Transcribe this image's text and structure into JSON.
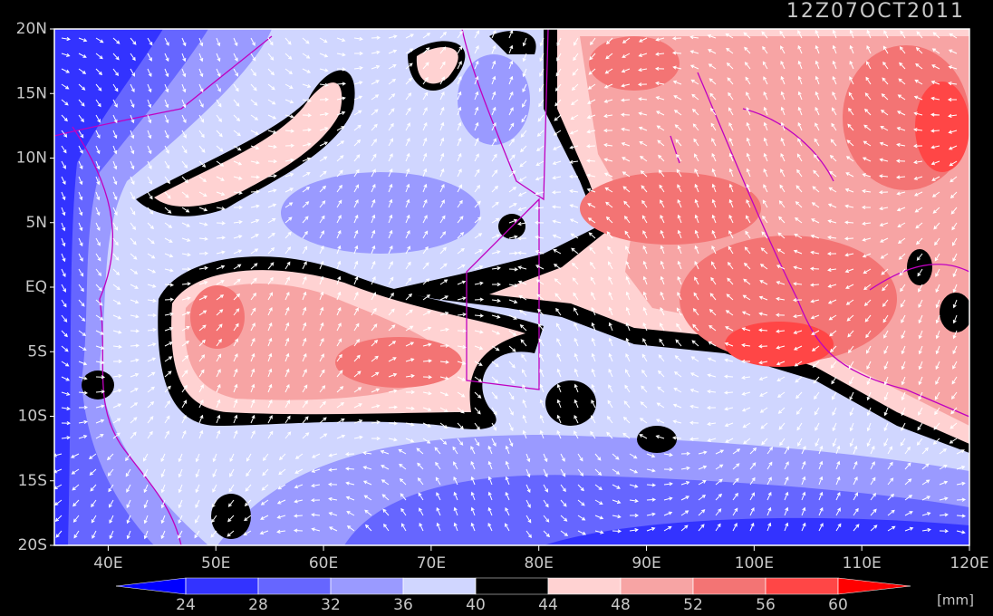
{
  "chart_data": {
    "type": "map",
    "title": "12Z07OCT2011",
    "xlim": [
      35,
      120
    ],
    "ylim": [
      -20,
      20
    ],
    "xticks": [
      {
        "value": 40,
        "label": "40E"
      },
      {
        "value": 50,
        "label": "50E"
      },
      {
        "value": 60,
        "label": "60E"
      },
      {
        "value": 70,
        "label": "70E"
      },
      {
        "value": 80,
        "label": "80E"
      },
      {
        "value": 90,
        "label": "90E"
      },
      {
        "value": 100,
        "label": "100E"
      },
      {
        "value": 110,
        "label": "110E"
      },
      {
        "value": 120,
        "label": "120E"
      }
    ],
    "yticks": [
      {
        "value": 20,
        "label": "20N"
      },
      {
        "value": 15,
        "label": "15N"
      },
      {
        "value": 10,
        "label": "10N"
      },
      {
        "value": 5,
        "label": "5N"
      },
      {
        "value": 0,
        "label": "EQ"
      },
      {
        "value": -5,
        "label": "5S"
      },
      {
        "value": -10,
        "label": "10S"
      },
      {
        "value": -15,
        "label": "15S"
      },
      {
        "value": -20,
        "label": "20S"
      }
    ],
    "levels": [
      24,
      28,
      32,
      36,
      40,
      44,
      48,
      52,
      56,
      60
    ],
    "colors": [
      "#0000ff",
      "#3333ff",
      "#6666ff",
      "#9a9aff",
      "#d0d6ff",
      "#000000",
      "#ffd2d2",
      "#f7a4a4",
      "#f37474",
      "#ff4646",
      "#ff0000"
    ],
    "unit": "[mm]"
  }
}
